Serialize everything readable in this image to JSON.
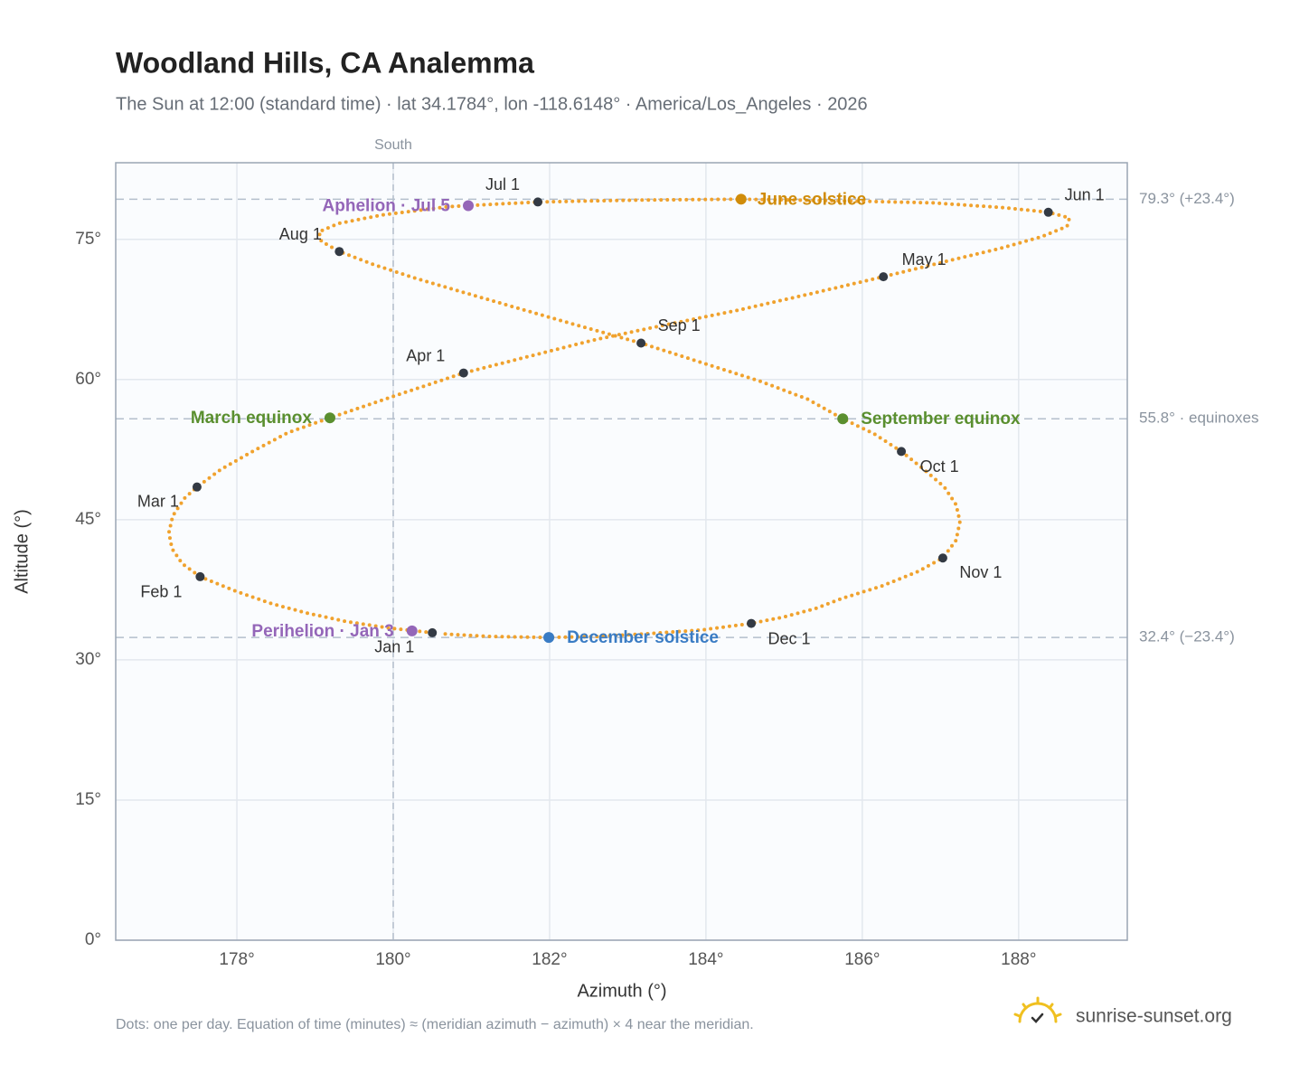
{
  "chart_data": {
    "type": "scatter",
    "title": "Woodland Hills, CA Analemma",
    "subtitle": "The Sun at 12:00 (standard time) · lat 34.1784°, lon -118.6148° · America/Los_Angeles · 2026",
    "xlabel": "Azimuth (°)",
    "ylabel": "Altitude (°)",
    "xlim": [
      176.45,
      189.39
    ],
    "ylim": [
      0,
      83.2
    ],
    "xticks": [
      {
        "value": 178,
        "label": "178°"
      },
      {
        "value": 180,
        "label": "180°"
      },
      {
        "value": 182,
        "label": "182°"
      },
      {
        "value": 184,
        "label": "184°"
      },
      {
        "value": 186,
        "label": "186°"
      },
      {
        "value": 188,
        "label": "188°"
      }
    ],
    "yticks": [
      {
        "value": 0,
        "label": "0°"
      },
      {
        "value": 15,
        "label": "15°"
      },
      {
        "value": 30,
        "label": "30°"
      },
      {
        "value": 45,
        "label": "45°"
      },
      {
        "value": 60,
        "label": "60°"
      },
      {
        "value": 75,
        "label": "75°"
      }
    ],
    "grid": true,
    "color": "#f0a22e",
    "x": [
      180.5,
      179.95,
      179.4,
      178.9,
      178.45,
      178.0,
      177.53,
      177.3,
      177.17,
      177.13,
      177.18,
      177.33,
      177.49,
      177.8,
      178.2,
      178.65,
      179.19,
      180.0,
      180.9,
      181.7,
      182.55,
      183.45,
      184.4,
      185.35,
      186.27,
      187.05,
      187.75,
      188.3,
      188.62,
      188.65,
      188.38,
      187.8,
      186.9,
      185.9,
      184.45,
      183.15,
      181.85,
      180.7,
      179.85,
      179.3,
      179.05,
      179.08,
      179.31,
      179.75,
      180.3,
      180.95,
      181.65,
      182.4,
      183.17,
      183.95,
      184.7,
      185.3,
      185.75,
      186.15,
      186.5,
      186.8,
      187.05,
      187.2,
      187.25,
      187.2,
      187.03,
      186.7,
      186.25,
      185.75,
      185.4,
      185.0,
      184.58,
      183.95,
      183.25,
      182.6,
      181.99,
      181.25,
      180.6
    ],
    "values": [
      32.9,
      33.4,
      34.1,
      35.0,
      36.0,
      37.3,
      38.9,
      40.3,
      41.9,
      43.6,
      45.4,
      47.3,
      48.5,
      50.4,
      52.3,
      54.3,
      55.9,
      58.2,
      60.7,
      62.4,
      64.2,
      65.8,
      67.4,
      69.2,
      71.0,
      72.6,
      74.0,
      75.3,
      76.4,
      77.3,
      77.9,
      78.4,
      78.9,
      79.1,
      79.3,
      79.2,
      79.0,
      78.5,
      77.6,
      76.7,
      75.8,
      74.8,
      73.7,
      72.3,
      70.8,
      69.2,
      67.5,
      65.7,
      63.9,
      61.8,
      59.8,
      57.9,
      55.8,
      54.2,
      52.3,
      50.3,
      48.5,
      46.6,
      44.8,
      42.8,
      40.9,
      39.4,
      37.9,
      36.6,
      35.5,
      34.6,
      33.9,
      33.2,
      32.8,
      32.5,
      32.4,
      32.5,
      32.8
    ],
    "month_color": "#333a44",
    "months": [
      {
        "label": "Jan 1",
        "x": 180.5,
        "y": 32.9
      },
      {
        "label": "Feb 1",
        "x": 177.53,
        "y": 38.9
      },
      {
        "label": "Mar 1",
        "x": 177.49,
        "y": 48.5
      },
      {
        "label": "Apr 1",
        "x": 180.9,
        "y": 60.7
      },
      {
        "label": "May 1",
        "x": 186.27,
        "y": 71.0
      },
      {
        "label": "Jun 1",
        "x": 188.38,
        "y": 77.9
      },
      {
        "label": "Jul 1",
        "x": 181.85,
        "y": 79.0
      },
      {
        "label": "Aug 1",
        "x": 179.31,
        "y": 73.7
      },
      {
        "label": "Sep 1",
        "x": 183.17,
        "y": 63.9
      },
      {
        "label": "Oct 1",
        "x": 186.5,
        "y": 52.3
      },
      {
        "label": "Nov 1",
        "x": 187.03,
        "y": 40.9
      },
      {
        "label": "Dec 1",
        "x": 184.58,
        "y": 33.9
      }
    ],
    "events": [
      {
        "label": "June solstice",
        "x": 184.45,
        "y": 79.3,
        "color": "#d08c0a"
      },
      {
        "label": "December solstice",
        "x": 181.99,
        "y": 32.4,
        "color": "#3a7cc4"
      },
      {
        "label": "March equinox",
        "x": 179.19,
        "y": 55.9,
        "color": "#5a8f2f"
      },
      {
        "label": "September equinox",
        "x": 185.75,
        "y": 55.8,
        "color": "#5a8f2f"
      },
      {
        "label": "Perihelion · Jan 3",
        "x": 180.24,
        "y": 33.1,
        "color": "#9466b8"
      },
      {
        "label": "Aphelion · Jul 5",
        "x": 180.96,
        "y": 78.6,
        "color": "#9466b8"
      }
    ],
    "reference_lines": [
      {
        "value": 79.3,
        "label": "79.3° (+23.4°)"
      },
      {
        "value": 55.8,
        "label": "55.8° · equinoxes"
      },
      {
        "value": 32.4,
        "label": "32.4° (−23.4°)"
      }
    ],
    "x_reference": {
      "value": 180,
      "label": "South"
    },
    "footnote": "Dots: one per day. Equation of time (minutes) ≈ (meridian azimuth − azimuth) × 4 near the meridian.",
    "brand": "sunrise-sunset.org"
  }
}
